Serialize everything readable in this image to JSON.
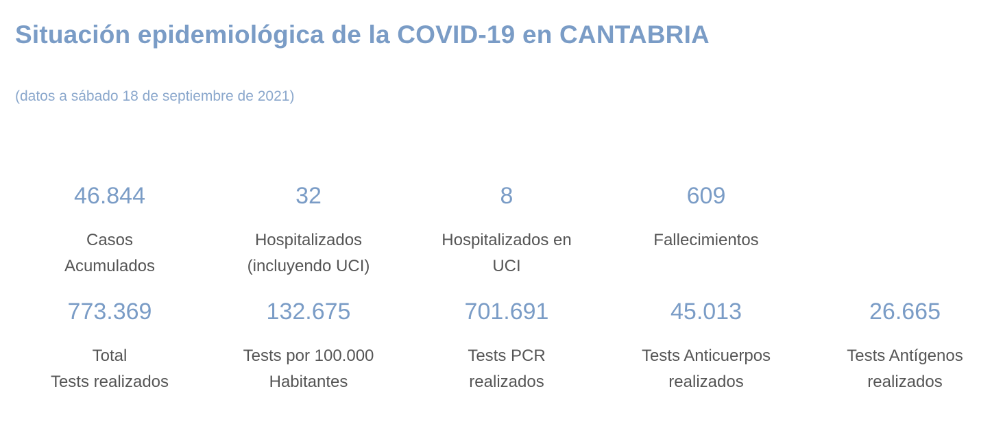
{
  "header": {
    "title": "Situación epidemiológica de la COVID-19 en CANTABRIA",
    "subtitle": "(datos a sábado 18 de septiembre de 2021)"
  },
  "stats_row1": [
    {
      "value": "46.844",
      "label_lines": [
        "Casos",
        "Acumulados"
      ]
    },
    {
      "value": "32",
      "label_lines": [
        "Hospitalizados",
        "(incluyendo UCI)"
      ]
    },
    {
      "value": "8",
      "label_lines": [
        "Hospitalizados en",
        "UCI"
      ]
    },
    {
      "value": "609",
      "label_lines": [
        "Fallecimientos"
      ]
    }
  ],
  "stats_row2": [
    {
      "value": "773.369",
      "label_lines": [
        "Total",
        "Tests realizados"
      ]
    },
    {
      "value": "132.675",
      "label_lines": [
        "Tests por 100.000",
        "Habitantes"
      ]
    },
    {
      "value": "701.691",
      "label_lines": [
        "Tests PCR",
        "realizados"
      ]
    },
    {
      "value": "45.013",
      "label_lines": [
        "Tests Anticuerpos",
        "realizados"
      ]
    },
    {
      "value": "26.665",
      "label_lines": [
        "Tests Antígenos",
        "realizados"
      ]
    }
  ],
  "colors": {
    "accent": "#7a9cc6",
    "label_text": "#555555"
  }
}
